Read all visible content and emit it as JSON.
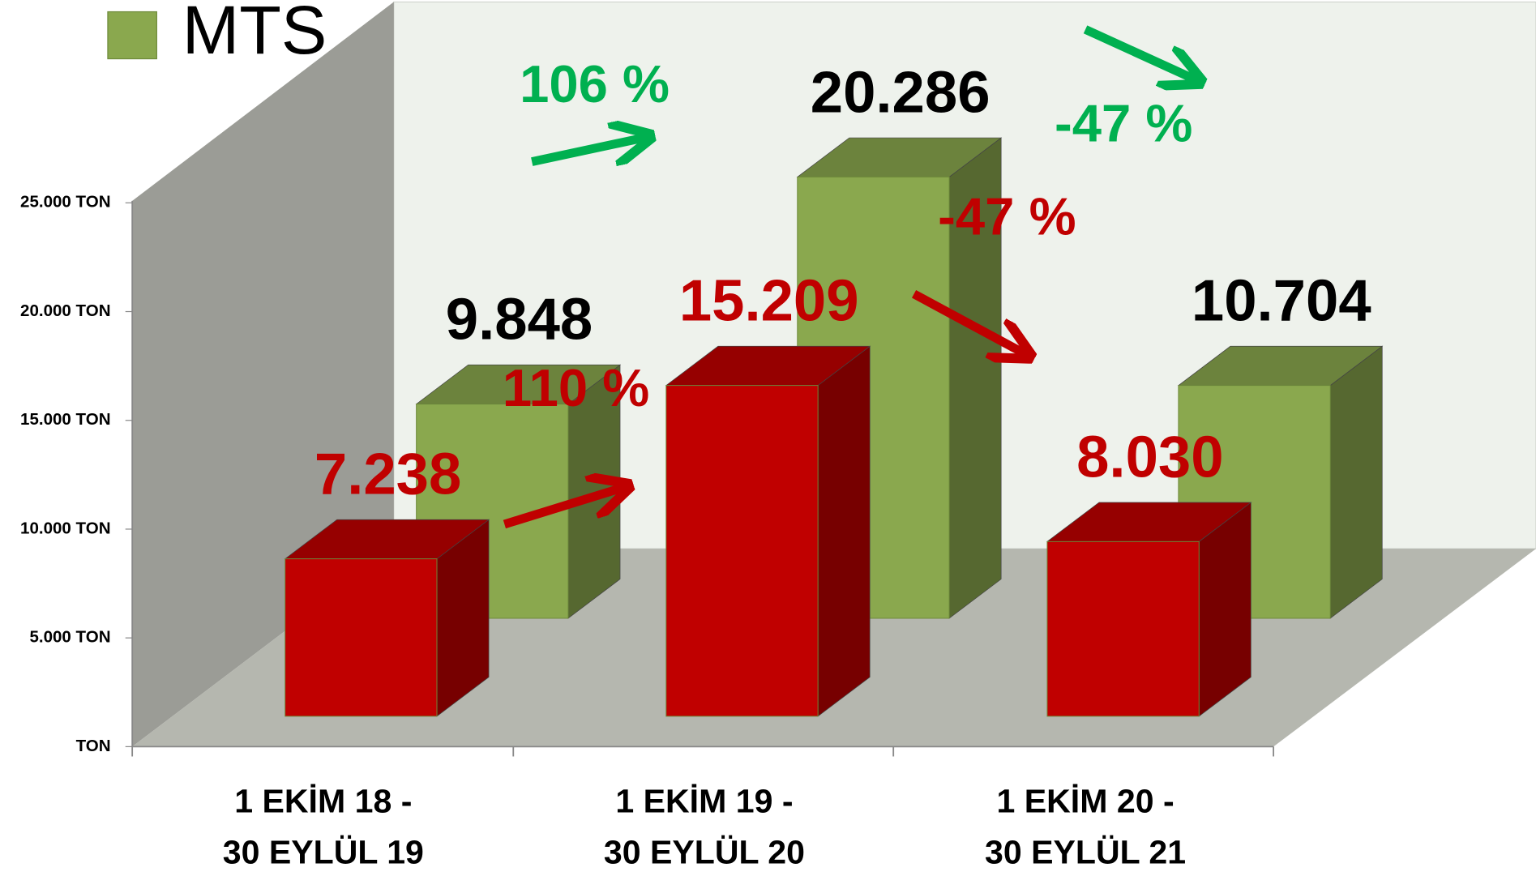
{
  "chart_data": {
    "type": "bar3d",
    "categories": [
      [
        "1 EKİM 18 -",
        "30 EYLÜL 19"
      ],
      [
        "1 EKİM 19 -",
        "30 EYLÜL 20"
      ],
      [
        "1 EKİM 20 -",
        "30 EYLÜL 21"
      ]
    ],
    "series": [
      {
        "color": "#c00000",
        "values": [
          7238,
          15209,
          8030
        ],
        "value_labels": [
          "7.238",
          "15.209",
          "8.030"
        ]
      },
      {
        "name": "MTS",
        "color": "#8aa84e",
        "values": [
          9848,
          20286,
          10704
        ],
        "value_labels": [
          "9.848",
          "20.286",
          "10.704"
        ]
      }
    ],
    "ylim": [
      0,
      25000
    ],
    "yticks": [
      {
        "value": 0,
        "label": "TON"
      },
      {
        "value": 5000,
        "label": "5.000 TON"
      },
      {
        "value": 10000,
        "label": "10.000 TON"
      },
      {
        "value": 15000,
        "label": "15.000 TON"
      },
      {
        "value": 20000,
        "label": "20.000 TON"
      },
      {
        "value": 25000,
        "label": "25.000 TON"
      }
    ],
    "annotations": [
      {
        "text": "106 %",
        "color": "#00b050"
      },
      {
        "text": "110 %",
        "color": "#c00000"
      },
      {
        "text": "-47 %",
        "color": "#00b050"
      },
      {
        "text": "-47 %",
        "color": "#c00000"
      }
    ],
    "legend": "top-left"
  }
}
